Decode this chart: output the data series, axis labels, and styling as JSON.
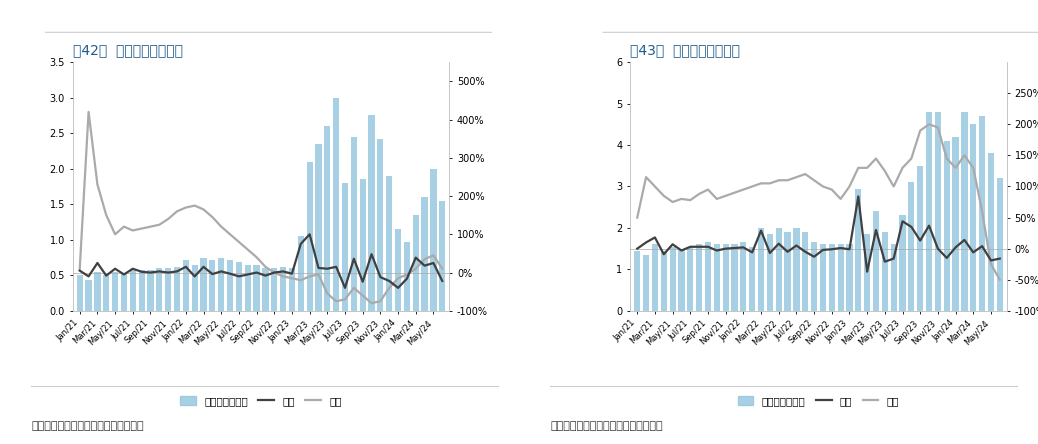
{
  "fig42_title": "图42：  浙江省逆变器出口",
  "fig43_title": "图43：  广东省逆变器出口",
  "source_text": "数据来源：海关总署，东吴证券研究所",
  "x_labels": [
    "Jan/21",
    "Mar/21",
    "May/21",
    "Jul/21",
    "Sep/21",
    "Nov/21",
    "Jan/22",
    "Mar/22",
    "May/22",
    "Jul/22",
    "Sep/22",
    "Nov/22",
    "Jan/23",
    "Mar/23",
    "May/23",
    "Jul/23",
    "Sep/23",
    "Nov/23",
    "Jan/24",
    "Mar/24",
    "May/24"
  ],
  "fig42_bars": [
    0.5,
    0.43,
    0.55,
    0.5,
    0.55,
    0.52,
    0.57,
    0.58,
    0.58,
    0.6,
    0.6,
    0.62,
    0.72,
    0.65,
    0.75,
    0.72,
    0.75,
    0.72,
    0.68,
    0.65,
    0.65,
    0.6,
    0.6,
    0.62,
    0.6,
    1.05,
    2.1,
    2.35,
    2.6,
    3.0,
    1.8,
    2.45,
    1.85,
    2.75,
    2.42,
    1.9,
    1.15,
    0.97,
    1.35,
    1.6,
    2.0,
    1.55
  ],
  "fig42_mom_pct": [
    5,
    -10,
    25,
    -8,
    10,
    -5,
    10,
    2,
    0,
    3,
    0,
    3,
    15,
    -10,
    15,
    -4,
    3,
    -3,
    -10,
    -5,
    0,
    -8,
    0,
    3,
    -3,
    75,
    100,
    12,
    10,
    15,
    -40,
    36,
    -24,
    48,
    -12,
    -22,
    -40,
    -16,
    39,
    18,
    25,
    -22
  ],
  "fig42_yoy_pct": [
    10,
    420,
    230,
    150,
    100,
    120,
    110,
    115,
    120,
    125,
    140,
    160,
    170,
    175,
    165,
    145,
    120,
    100,
    80,
    60,
    40,
    15,
    0,
    -10,
    -15,
    -20,
    -10,
    -5,
    -55,
    -75,
    -70,
    -40,
    -60,
    -80,
    -75,
    -40,
    -15,
    -5,
    10,
    35,
    45,
    10
  ],
  "fig43_bars": [
    1.45,
    1.35,
    1.6,
    1.45,
    1.55,
    1.5,
    1.55,
    1.6,
    1.65,
    1.6,
    1.6,
    1.62,
    1.65,
    1.55,
    2.0,
    1.85,
    2.0,
    1.9,
    2.0,
    1.9,
    1.65,
    1.62,
    1.6,
    1.62,
    1.6,
    2.95,
    1.85,
    2.4,
    1.9,
    1.6,
    2.3,
    3.1,
    3.5,
    4.8,
    4.8,
    4.1,
    4.2,
    4.8,
    4.5,
    4.7,
    3.8,
    3.2
  ],
  "fig43_mom_pct": [
    0,
    10,
    18,
    -9,
    7,
    -3,
    3,
    3,
    3,
    -3,
    0,
    1,
    2,
    -6,
    29,
    -7,
    8,
    -5,
    5,
    -5,
    -13,
    -2,
    -1,
    1,
    -1,
    84,
    -37,
    30,
    -21,
    -16,
    44,
    35,
    13,
    37,
    0,
    -15,
    2,
    14,
    -6,
    4,
    -19,
    -16
  ],
  "fig43_yoy_pct": [
    50,
    115,
    100,
    85,
    75,
    80,
    78,
    88,
    95,
    80,
    85,
    90,
    95,
    100,
    105,
    105,
    110,
    110,
    115,
    120,
    110,
    100,
    95,
    80,
    100,
    130,
    130,
    145,
    125,
    100,
    130,
    145,
    190,
    200,
    195,
    145,
    130,
    150,
    130,
    60,
    -25,
    -50
  ],
  "bar_color": "#92c5de",
  "mom_color": "#404040",
  "yoy_color": "#aaaaaa",
  "title_color": "#1f5c8b",
  "bg_color": "#ffffff"
}
